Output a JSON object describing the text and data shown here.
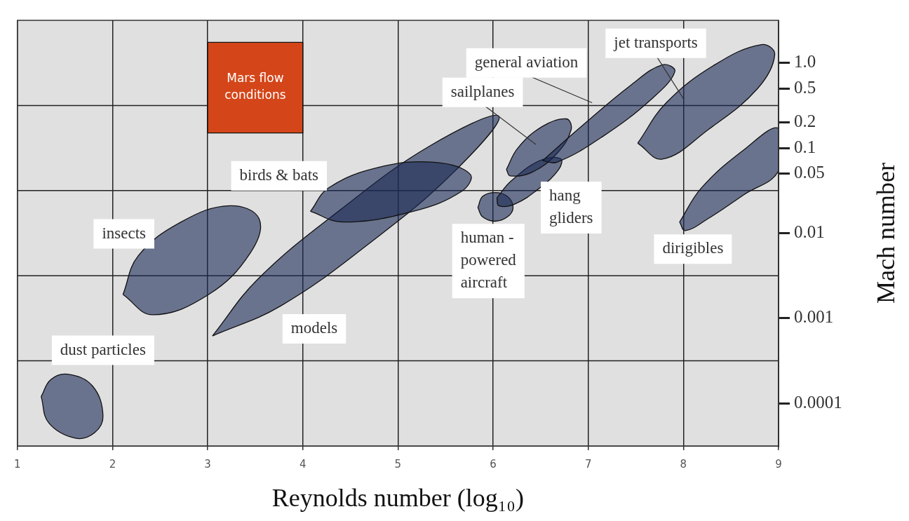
{
  "chart_data": {
    "type": "area",
    "xlabel": "Reynolds number (log₁₀)",
    "ylabel": "Mach number",
    "xlim": [
      1,
      9
    ],
    "xticks": [
      1,
      2,
      3,
      4,
      5,
      6,
      7,
      8,
      9
    ],
    "ylim": [
      3.16e-05,
      3.16
    ],
    "yticks": [
      {
        "value": 1,
        "label": "1.0"
      },
      0.5,
      0.2,
      0.1,
      0.05,
      0.01,
      0.001,
      0.0001
    ],
    "log": "y",
    "grid": "x",
    "legend": false,
    "marker": "none",
    "ref_lines": [
      {
        "axis": "y",
        "value": 0.316,
        "color": "#222222"
      },
      {
        "axis": "y",
        "value": 0.0316,
        "color": "#222222"
      },
      {
        "axis": "y",
        "value": 0.00316,
        "color": "#222222"
      },
      {
        "axis": "y",
        "value": 0.000316,
        "color": "#222222"
      }
    ],
    "series": [
      {
        "name": "dust particles",
        "color": "#1b2a55",
        "x": [
          1.25,
          1.35,
          1.53,
          1.79,
          1.9,
          1.81,
          1.61,
          1.33
        ],
        "values": [
          0.00012,
          0.00019,
          0.00022,
          0.00016,
          7.1e-05,
          4.5e-05,
          3.9e-05,
          5.9e-05
        ]
      },
      {
        "name": "insects",
        "color": "#1b2a55",
        "x": [
          2.11,
          2.27,
          2.72,
          3.23,
          3.54,
          3.45,
          3.01,
          2.42
        ],
        "values": [
          0.0019,
          0.0054,
          0.0135,
          0.021,
          0.0148,
          0.0059,
          0.0019,
          0.0011
        ]
      },
      {
        "name": "models",
        "color": "#1b2a55",
        "x": [
          3.05,
          3.53,
          4.4,
          5.33,
          6.06,
          5.57,
          4.7,
          3.77
        ],
        "values": [
          0.00062,
          0.0029,
          0.019,
          0.105,
          0.237,
          0.05,
          0.0076,
          0.0014
        ]
      },
      {
        "name": "birds & bats",
        "color": "#1b2a55",
        "x": [
          4.08,
          4.27,
          4.79,
          5.38,
          5.76,
          5.67,
          5.16,
          4.42
        ],
        "values": [
          0.018,
          0.034,
          0.059,
          0.068,
          0.049,
          0.031,
          0.018,
          0.0135
        ]
      },
      {
        "name": "Mars flow conditions",
        "color": "#d4461a",
        "x": [
          3,
          4,
          4,
          3
        ],
        "values": [
          1.74,
          1.74,
          0.15,
          0.15
        ]
      },
      {
        "name": "human - powered aircraft",
        "color": "#1b2a55",
        "x": [
          5.84,
          5.89,
          6.02,
          6.15,
          6.21,
          6.15,
          6.02,
          5.89
        ],
        "values": [
          0.02,
          0.027,
          0.03,
          0.027,
          0.02,
          0.0155,
          0.0138,
          0.0155
        ]
      },
      {
        "name": "hang gliders",
        "color": "#1b2a55",
        "x": [
          6.04,
          6.19,
          6.49,
          6.71,
          6.69,
          6.49,
          6.23,
          6.06
        ],
        "values": [
          0.026,
          0.041,
          0.071,
          0.075,
          0.056,
          0.034,
          0.022,
          0.021
        ]
      },
      {
        "name": "sailplanes",
        "color": "#1b2a55",
        "x": [
          6.14,
          6.26,
          6.52,
          6.77,
          6.82,
          6.67,
          6.41,
          6.18
        ],
        "values": [
          0.056,
          0.1,
          0.18,
          0.22,
          0.164,
          0.086,
          0.052,
          0.047
        ]
      },
      {
        "name": "general aviation",
        "color": "#1b2a55",
        "x": [
          6.52,
          6.93,
          7.45,
          7.78,
          7.91,
          7.67,
          7.15,
          6.67
        ],
        "values": [
          0.071,
          0.18,
          0.55,
          0.95,
          0.79,
          0.38,
          0.136,
          0.068
        ]
      },
      {
        "name": "jet transports",
        "color": "#1b2a55",
        "x": [
          7.52,
          7.82,
          8.33,
          8.82,
          8.96,
          8.78,
          8.26,
          7.78
        ],
        "values": [
          0.114,
          0.34,
          0.95,
          1.64,
          1.25,
          0.5,
          0.164,
          0.074
        ]
      },
      {
        "name": "dirigibles",
        "color": "#1b2a55",
        "x": [
          7.96,
          8.19,
          8.63,
          9,
          9,
          8.63,
          8.26,
          8.02
        ],
        "values": [
          0.0135,
          0.034,
          0.094,
          0.17,
          0.054,
          0.028,
          0.0148,
          0.0107
        ]
      }
    ]
  }
}
